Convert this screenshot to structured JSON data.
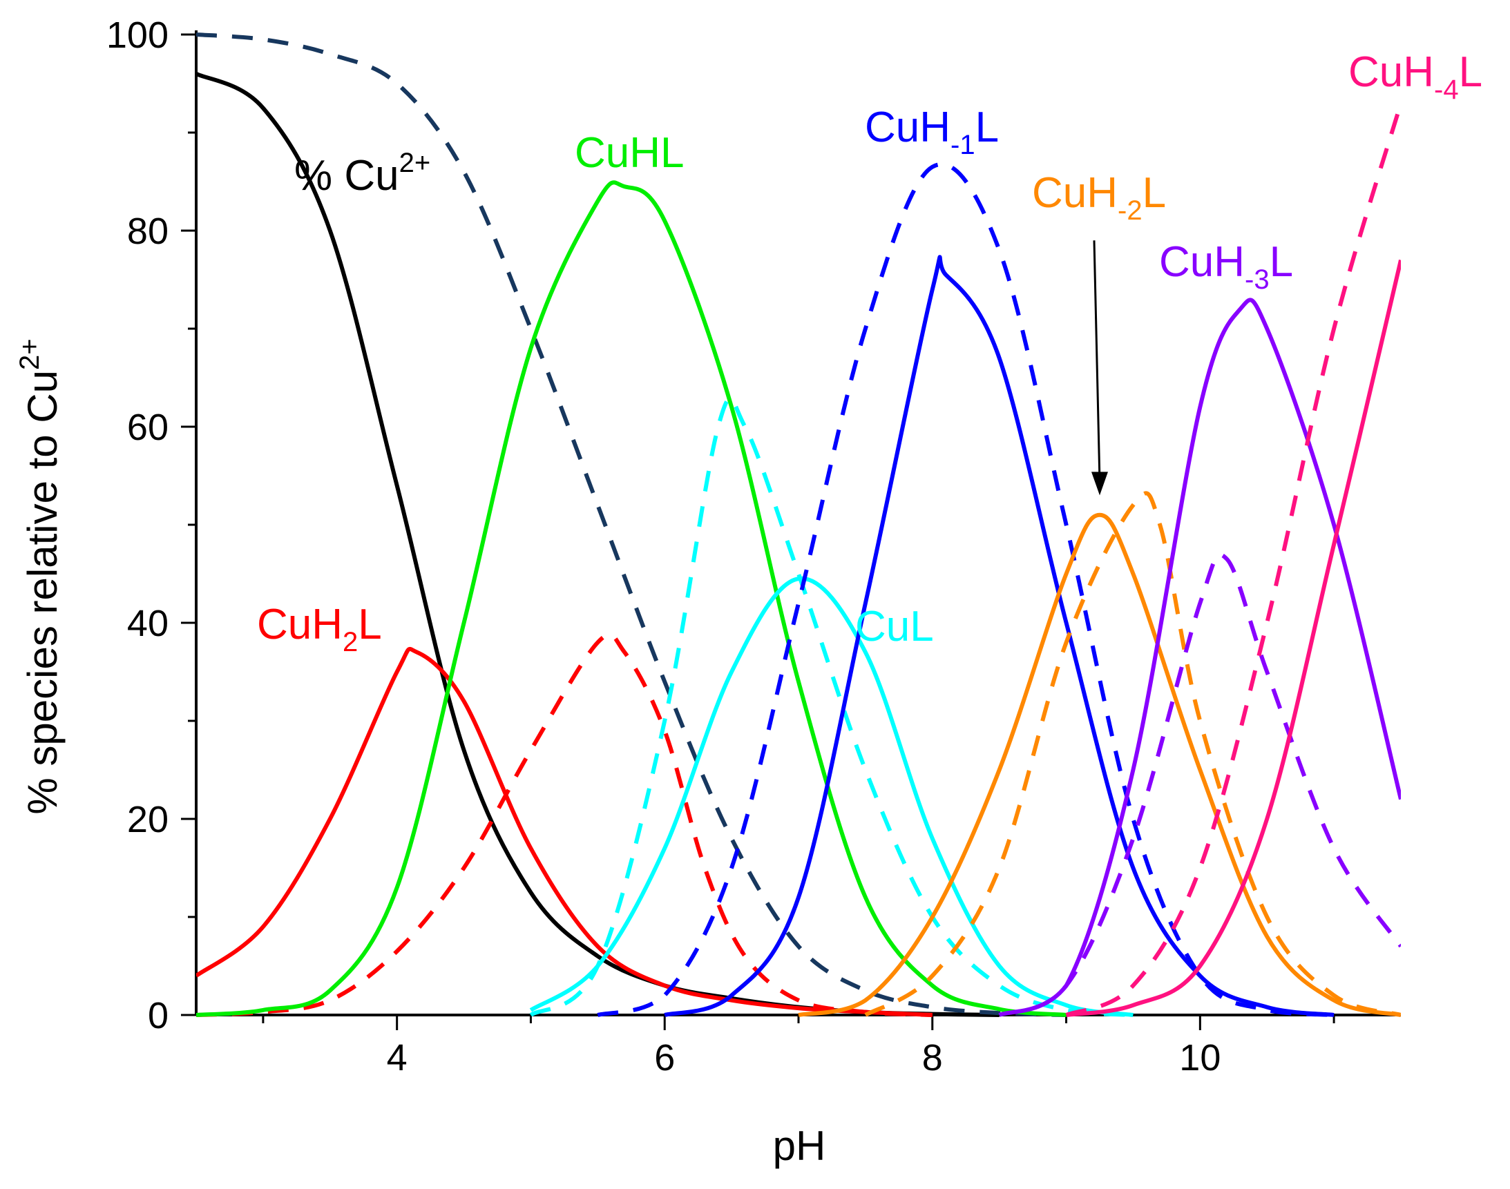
{
  "chart_data": {
    "type": "line",
    "title": "",
    "xlabel": "pH",
    "ylabel": "% species relative to Cu",
    "ylabel_superscript": "2+",
    "xlim": [
      2.5,
      11.5
    ],
    "ylim": [
      0,
      100
    ],
    "x_ticks": [
      4,
      6,
      8,
      10
    ],
    "x_tick_labels": [
      "4",
      "6",
      "8",
      "10"
    ],
    "y_ticks": [
      0,
      20,
      40,
      60,
      80,
      100
    ],
    "y_tick_labels": [
      "0",
      "20",
      "40",
      "60",
      "80",
      "100"
    ],
    "grid": false,
    "legend": "inline labels",
    "series": [
      {
        "name": "% Cu2+ (solid)",
        "style": "solid",
        "color": "#000000",
        "points": [
          [
            2.5,
            96
          ],
          [
            3.0,
            92.5
          ],
          [
            3.5,
            80
          ],
          [
            4.0,
            54
          ],
          [
            4.5,
            27
          ],
          [
            5.0,
            12.5
          ],
          [
            5.5,
            6
          ],
          [
            6.0,
            3
          ],
          [
            6.5,
            1.7
          ],
          [
            7.0,
            0.8
          ],
          [
            7.5,
            0.3
          ],
          [
            8.0,
            0.1
          ],
          [
            8.5,
            0
          ]
        ]
      },
      {
        "name": "% Cu2+ (dashed)",
        "style": "dashed",
        "color": "#17375e",
        "points": [
          [
            2.5,
            100
          ],
          [
            3.0,
            99.5
          ],
          [
            3.5,
            98
          ],
          [
            4.0,
            95
          ],
          [
            4.5,
            86
          ],
          [
            5.0,
            70
          ],
          [
            5.5,
            52
          ],
          [
            6.0,
            34
          ],
          [
            6.5,
            18
          ],
          [
            7.0,
            7
          ],
          [
            7.5,
            2.5
          ],
          [
            8.0,
            0.8
          ],
          [
            8.5,
            0.2
          ],
          [
            9.0,
            0
          ]
        ]
      },
      {
        "name": "CuH2L (solid)",
        "style": "solid",
        "color": "#ff0000",
        "points": [
          [
            2.5,
            4
          ],
          [
            3.0,
            9
          ],
          [
            3.5,
            20
          ],
          [
            4.0,
            35
          ],
          [
            4.15,
            37
          ],
          [
            4.5,
            32
          ],
          [
            5.0,
            17
          ],
          [
            5.5,
            7
          ],
          [
            6.0,
            3
          ],
          [
            6.5,
            1.5
          ],
          [
            7.0,
            0.7
          ],
          [
            7.5,
            0.3
          ],
          [
            8.0,
            0
          ]
        ]
      },
      {
        "name": "CuH2L (dashed)",
        "style": "dashed",
        "color": "#ff0000",
        "points": [
          [
            2.5,
            0
          ],
          [
            3.0,
            0.3
          ],
          [
            3.5,
            1.5
          ],
          [
            4.0,
            6.5
          ],
          [
            4.5,
            15
          ],
          [
            5.0,
            27
          ],
          [
            5.5,
            38
          ],
          [
            5.7,
            37
          ],
          [
            6.0,
            29
          ],
          [
            6.3,
            15
          ],
          [
            6.6,
            6
          ],
          [
            7.0,
            1.5
          ],
          [
            7.5,
            0.3
          ],
          [
            8.0,
            0
          ]
        ]
      },
      {
        "name": "CuHL (solid)",
        "style": "solid",
        "color": "#00ee00",
        "points": [
          [
            2.5,
            0
          ],
          [
            3.0,
            0.5
          ],
          [
            3.5,
            2.5
          ],
          [
            4.0,
            13
          ],
          [
            4.5,
            40
          ],
          [
            5.0,
            68
          ],
          [
            5.5,
            83
          ],
          [
            5.7,
            84.5
          ],
          [
            6.0,
            81
          ],
          [
            6.5,
            62
          ],
          [
            7.0,
            34
          ],
          [
            7.5,
            12
          ],
          [
            8.0,
            3
          ],
          [
            8.5,
            0.6
          ],
          [
            9.0,
            0
          ]
        ]
      },
      {
        "name": "CuL (dashed)",
        "style": "dashed",
        "color": "#00ffff",
        "points": [
          [
            5.0,
            0
          ],
          [
            5.5,
            5
          ],
          [
            6.0,
            30
          ],
          [
            6.4,
            60
          ],
          [
            6.6,
            60
          ],
          [
            7.0,
            45
          ],
          [
            7.5,
            25
          ],
          [
            8.0,
            10
          ],
          [
            8.5,
            3
          ],
          [
            9.0,
            0.5
          ],
          [
            9.5,
            0
          ]
        ]
      },
      {
        "name": "CuL (solid)",
        "style": "solid",
        "color": "#00ffff",
        "points": [
          [
            5.0,
            0.5
          ],
          [
            5.5,
            5
          ],
          [
            6.0,
            17
          ],
          [
            6.5,
            35
          ],
          [
            7.0,
            44.5
          ],
          [
            7.5,
            37
          ],
          [
            8.0,
            18
          ],
          [
            8.5,
            5
          ],
          [
            9.0,
            1
          ],
          [
            9.5,
            0
          ]
        ]
      },
      {
        "name": "CuH-1L (dashed)",
        "style": "dashed",
        "color": "#0000ff",
        "points": [
          [
            5.5,
            0
          ],
          [
            6.0,
            2
          ],
          [
            6.5,
            15
          ],
          [
            7.0,
            42
          ],
          [
            7.5,
            70
          ],
          [
            8.0,
            86.5
          ],
          [
            8.5,
            78
          ],
          [
            9.0,
            50
          ],
          [
            9.5,
            20
          ],
          [
            10.0,
            4
          ],
          [
            10.5,
            0.5
          ],
          [
            11.0,
            0
          ]
        ]
      },
      {
        "name": "CuH-1L (solid)",
        "style": "solid",
        "color": "#0000ff",
        "points": [
          [
            6.0,
            0
          ],
          [
            6.5,
            2
          ],
          [
            7.0,
            12
          ],
          [
            7.5,
            42
          ],
          [
            8.0,
            74
          ],
          [
            8.1,
            75.5
          ],
          [
            8.5,
            67
          ],
          [
            9.0,
            40
          ],
          [
            9.5,
            15
          ],
          [
            10.0,
            4
          ],
          [
            10.5,
            0.8
          ],
          [
            11.0,
            0
          ]
        ]
      },
      {
        "name": "CuH-2L (dashed)",
        "style": "dashed",
        "color": "#ff8800",
        "points": [
          [
            7.5,
            0
          ],
          [
            8.0,
            4
          ],
          [
            8.5,
            15
          ],
          [
            9.0,
            38
          ],
          [
            9.5,
            52
          ],
          [
            9.7,
            50
          ],
          [
            10.0,
            30
          ],
          [
            10.5,
            10
          ],
          [
            11.0,
            2
          ],
          [
            11.5,
            0
          ]
        ]
      },
      {
        "name": "CuH-2L (solid)",
        "style": "solid",
        "color": "#ff8800",
        "points": [
          [
            7.0,
            0
          ],
          [
            7.5,
            1.5
          ],
          [
            8.0,
            10
          ],
          [
            8.5,
            25
          ],
          [
            9.0,
            45
          ],
          [
            9.25,
            51
          ],
          [
            9.5,
            45
          ],
          [
            10.0,
            25
          ],
          [
            10.5,
            8
          ],
          [
            11.0,
            1.5
          ],
          [
            11.5,
            0
          ]
        ]
      },
      {
        "name": "CuH-3L (dashed)",
        "style": "dashed",
        "color": "#8800ff",
        "points": [
          [
            8.5,
            0
          ],
          [
            9.0,
            3
          ],
          [
            9.5,
            18
          ],
          [
            10.0,
            42
          ],
          [
            10.2,
            46.5
          ],
          [
            10.5,
            35
          ],
          [
            11.0,
            17
          ],
          [
            11.5,
            7
          ]
        ]
      },
      {
        "name": "CuH-3L (solid)",
        "style": "solid",
        "color": "#8800ff",
        "points": [
          [
            8.5,
            0
          ],
          [
            9.0,
            3
          ],
          [
            9.5,
            25
          ],
          [
            10.0,
            62
          ],
          [
            10.3,
            72
          ],
          [
            10.5,
            70
          ],
          [
            11.0,
            50
          ],
          [
            11.5,
            22
          ]
        ]
      },
      {
        "name": "CuH-4L (dashed)",
        "style": "dashed",
        "color": "#ff1180",
        "points": [
          [
            9.0,
            0
          ],
          [
            9.5,
            3
          ],
          [
            10.0,
            15
          ],
          [
            10.5,
            40
          ],
          [
            11.0,
            70
          ],
          [
            11.5,
            93
          ]
        ]
      },
      {
        "name": "CuH-4L (solid)",
        "style": "solid",
        "color": "#ff1180",
        "points": [
          [
            9.0,
            0
          ],
          [
            9.5,
            1
          ],
          [
            10.0,
            5
          ],
          [
            10.5,
            20
          ],
          [
            11.0,
            48
          ],
          [
            11.5,
            77
          ]
        ]
      }
    ],
    "labels": [
      {
        "name": "cu2",
        "text": "% Cu",
        "sup": "2+",
        "color": "#000000"
      },
      {
        "name": "cuhl",
        "text": "CuHL",
        "color": "#00ee00"
      },
      {
        "name": "cuh-1l",
        "text": "CuH",
        "sub": "-1",
        "tail": "L",
        "color": "#0000ff"
      },
      {
        "name": "cuh-2l",
        "text": "CuH",
        "sub": "-2",
        "tail": "L",
        "color": "#ff8800"
      },
      {
        "name": "cuh-3l",
        "text": "CuH",
        "sub": "-3",
        "tail": "L",
        "color": "#8800ff"
      },
      {
        "name": "cuh-4l",
        "text": "CuH",
        "sub": "-4",
        "tail": "L",
        "color": "#ff1180"
      },
      {
        "name": "cuh2l",
        "text": "CuH",
        "sub": "2",
        "tail": "L",
        "color": "#ff0000"
      },
      {
        "name": "cul",
        "text": "CuL",
        "color": "#00ffff"
      }
    ],
    "annotations": [
      {
        "type": "arrow",
        "from": [
          9.25,
          79
        ],
        "to": [
          9.25,
          53
        ],
        "color": "#000000",
        "points_to": "CuH-2L"
      }
    ]
  }
}
